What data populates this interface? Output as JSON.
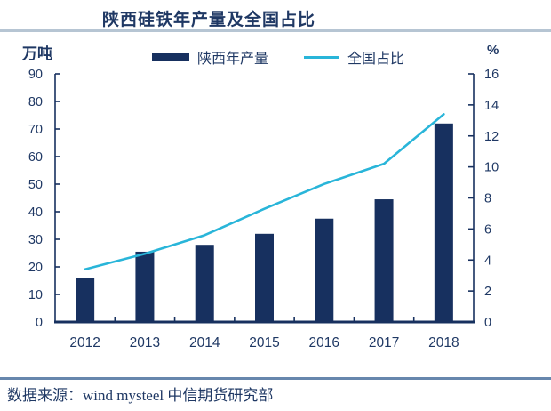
{
  "page": {
    "title": "陕西硅铁年产量及全国占比",
    "footer": "数据来源：wind mysteel 中信期货研究部"
  },
  "colors": {
    "navy": "#17305f",
    "cyan": "#29b5d9",
    "text_navy": "#1f3864",
    "header_divider": "#b6c5d3",
    "footer_divider": "#6787ad",
    "background": "#ffffff"
  },
  "chart_data": {
    "type": "bar",
    "subtype": "bar+line dual axis",
    "title": "陕西硅铁年产量及全国占比",
    "categories": [
      "2012",
      "2013",
      "2014",
      "2015",
      "2016",
      "2017",
      "2018"
    ],
    "series": [
      {
        "name": "陕西年产量",
        "type": "bar",
        "axis": "left",
        "color": "#17305f",
        "values": [
          16,
          25.5,
          28,
          32,
          37.5,
          44.5,
          72
        ]
      },
      {
        "name": "全国占比",
        "type": "line",
        "axis": "right",
        "color": "#29b5d9",
        "values": [
          3.4,
          4.4,
          5.6,
          7.3,
          8.9,
          10.2,
          13.4
        ]
      }
    ],
    "left_axis": {
      "label": "万吨",
      "min": 0,
      "max": 90,
      "ticks": [
        0,
        10,
        20,
        30,
        40,
        50,
        60,
        70,
        80,
        90
      ]
    },
    "right_axis": {
      "label": "%",
      "min": 0,
      "max": 16,
      "ticks": [
        0,
        2,
        4,
        6,
        8,
        10,
        12,
        14,
        16
      ]
    },
    "legend_position": "top",
    "grid": false
  }
}
